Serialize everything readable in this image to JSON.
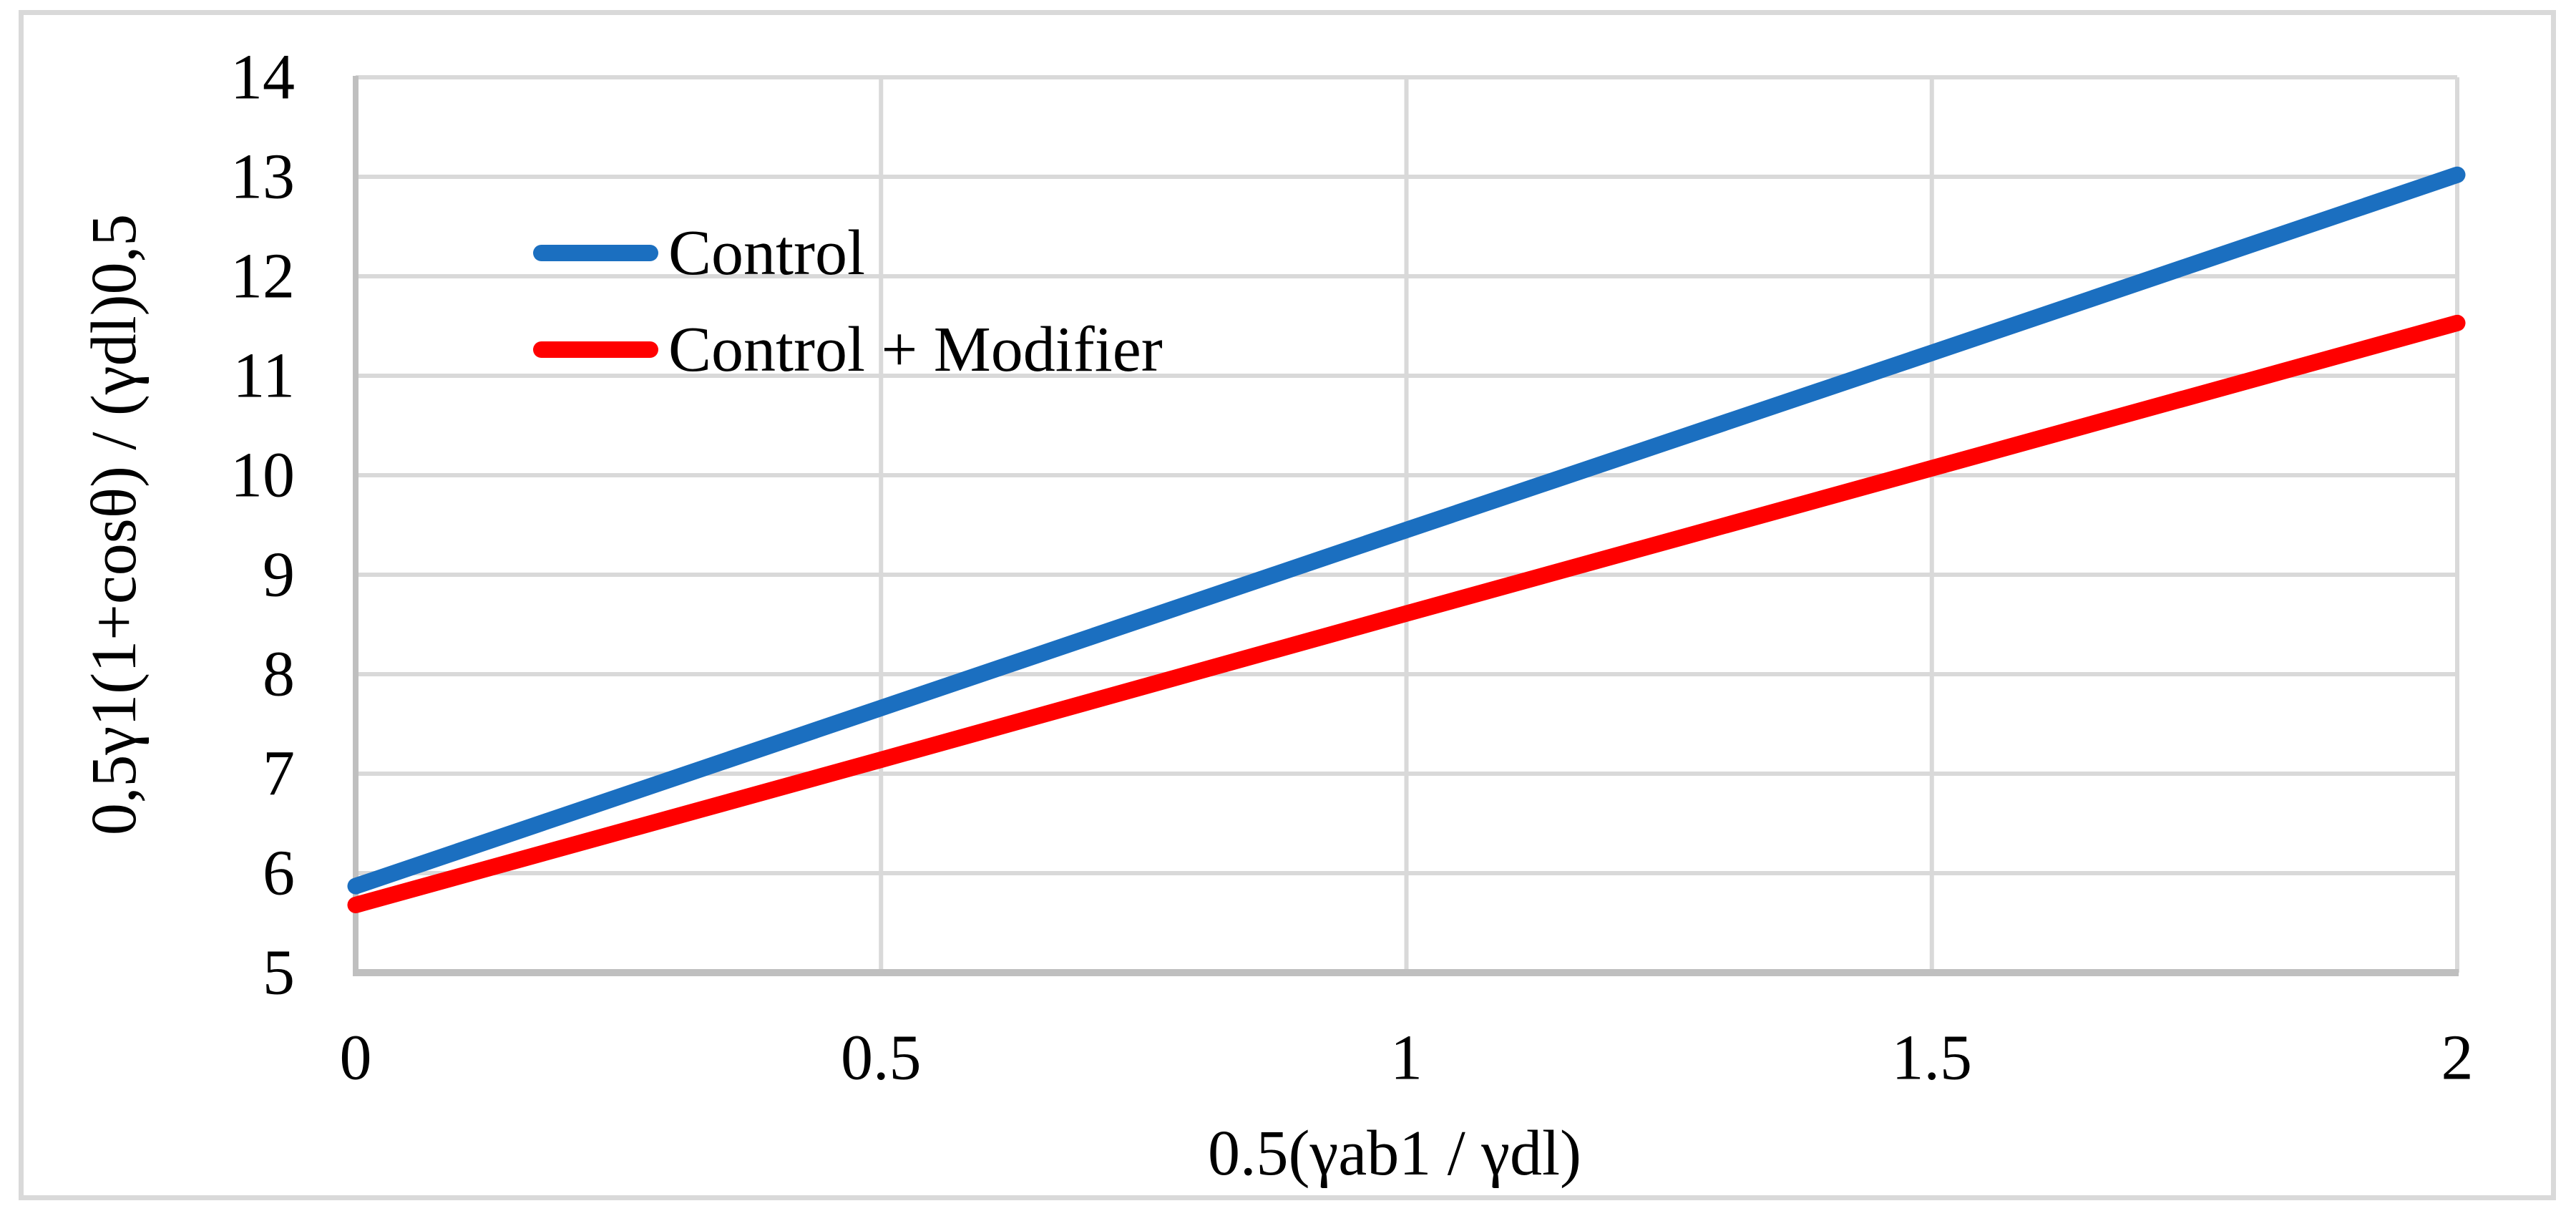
{
  "figure": {
    "background": "#FFFFFF",
    "frame_border_color": "#D9D9D9"
  },
  "chart_data": {
    "type": "line",
    "title": "",
    "xlabel": "0.5(γab1 / γdl)",
    "ylabel": "0,5γ1(1+cosθ) / (γdl)0,5",
    "xlim": [
      0,
      2
    ],
    "ylim": [
      5,
      14
    ],
    "xticks": [
      0,
      0.5,
      1,
      1.5,
      2
    ],
    "xticklabels": [
      "0",
      "0.5",
      "1",
      "1.5",
      "2"
    ],
    "yticks": [
      5,
      6,
      7,
      8,
      9,
      10,
      11,
      12,
      13,
      14
    ],
    "yticklabels": [
      "5",
      "6",
      "7",
      "8",
      "9",
      "10",
      "11",
      "12",
      "13",
      "14"
    ],
    "grid": true,
    "legend_position": "inside-upper-left",
    "x": [
      0,
      0.5,
      1,
      1.5,
      2
    ],
    "series": [
      {
        "name": "Control",
        "color": "#1B6FC0",
        "values": [
          5.87,
          7.66,
          9.45,
          11.23,
          13.02
        ]
      },
      {
        "name": "Control + Modifier",
        "color": "#FF0000",
        "values": [
          5.68,
          7.14,
          8.61,
          10.07,
          11.53
        ]
      }
    ],
    "colors": {
      "gridline": "#D9D9D9",
      "axis_line": "#BFBFBF",
      "text": "#000000"
    }
  }
}
